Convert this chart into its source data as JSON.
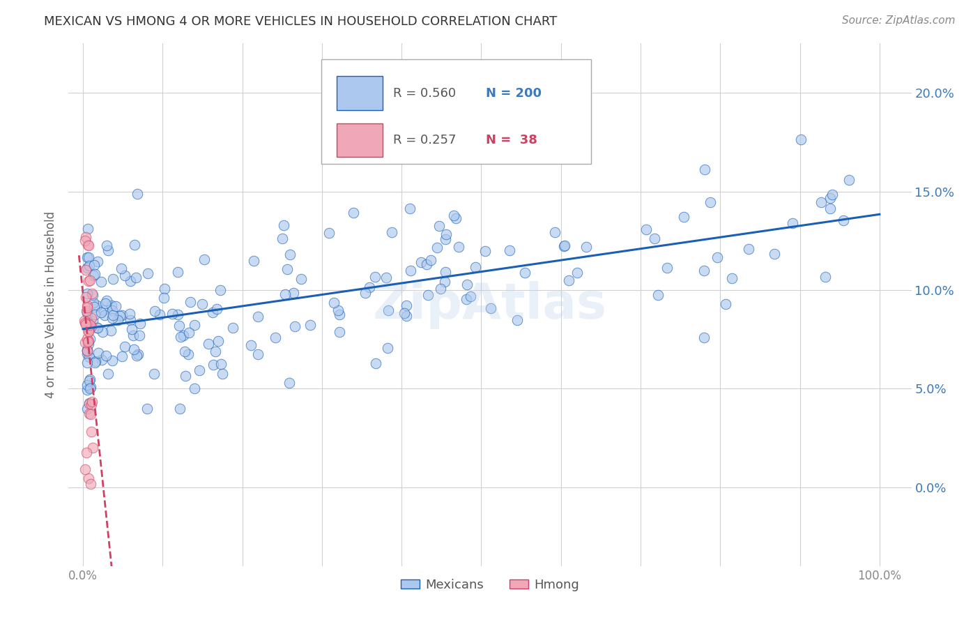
{
  "title": "MEXICAN VS HMONG 4 OR MORE VEHICLES IN HOUSEHOLD CORRELATION CHART",
  "source": "Source: ZipAtlas.com",
  "ylabel": "4 or more Vehicles in Household",
  "mexican_color": "#adc8ee",
  "hmong_color": "#f0a8b8",
  "mexican_line_color": "#1a5fb4",
  "hmong_line_color": "#d04060",
  "mexican_R": 0.56,
  "mexican_N": 200,
  "hmong_R": 0.257,
  "hmong_N": 38,
  "watermark": "ZipAtlas",
  "background_color": "#ffffff",
  "grid_color": "#d0d0d0",
  "title_color": "#333333",
  "right_tick_color": "#3a7abf",
  "bottom_tick_color": "#888888"
}
